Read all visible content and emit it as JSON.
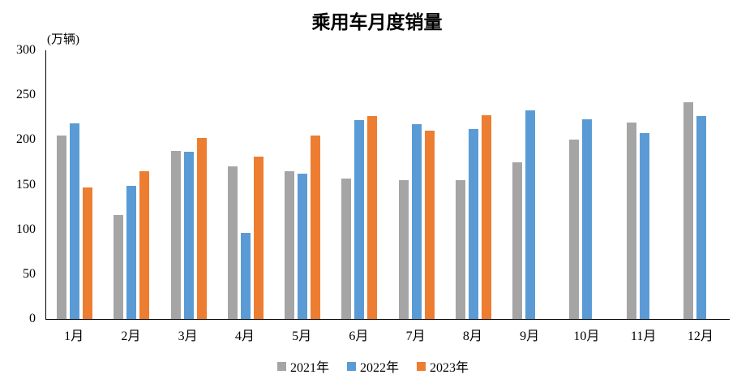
{
  "title": "乘用车月度销量",
  "unit_label": "(万辆)",
  "legend": [
    {
      "label": "2021年",
      "color": "#A5A5A5"
    },
    {
      "label": "2022年",
      "color": "#5B9BD5"
    },
    {
      "label": "2023年",
      "color": "#ED7D31"
    }
  ],
  "chart_data": {
    "type": "bar",
    "title": "乘用车月度销量",
    "xlabel": "",
    "ylabel": "(万辆)",
    "categories": [
      "1月",
      "2月",
      "3月",
      "4月",
      "5月",
      "6月",
      "7月",
      "8月",
      "9月",
      "10月",
      "11月",
      "12月"
    ],
    "series": [
      {
        "name": "2021年",
        "color": "#A5A5A5",
        "values": [
          204.5,
          115.6,
          187.4,
          170.4,
          164.6,
          156.9,
          155.1,
          155.2,
          175.1,
          200.7,
          219.2,
          242.2
        ]
      },
      {
        "name": "2022年",
        "color": "#5B9BD5",
        "values": [
          218.6,
          148.7,
          186.4,
          96.5,
          162.3,
          222.2,
          217.4,
          212.5,
          233.2,
          223.1,
          207.5,
          226.3
        ]
      },
      {
        "name": "2023年",
        "color": "#ED7D31",
        "values": [
          146.9,
          165.3,
          201.7,
          181.1,
          205.1,
          226.8,
          210.0,
          227.5,
          null,
          null,
          null,
          null
        ]
      }
    ],
    "ylim": [
      0,
      300
    ],
    "yticks": [
      0,
      50,
      100,
      150,
      200,
      250,
      300
    ],
    "grid": false,
    "legend_position": "bottom"
  }
}
